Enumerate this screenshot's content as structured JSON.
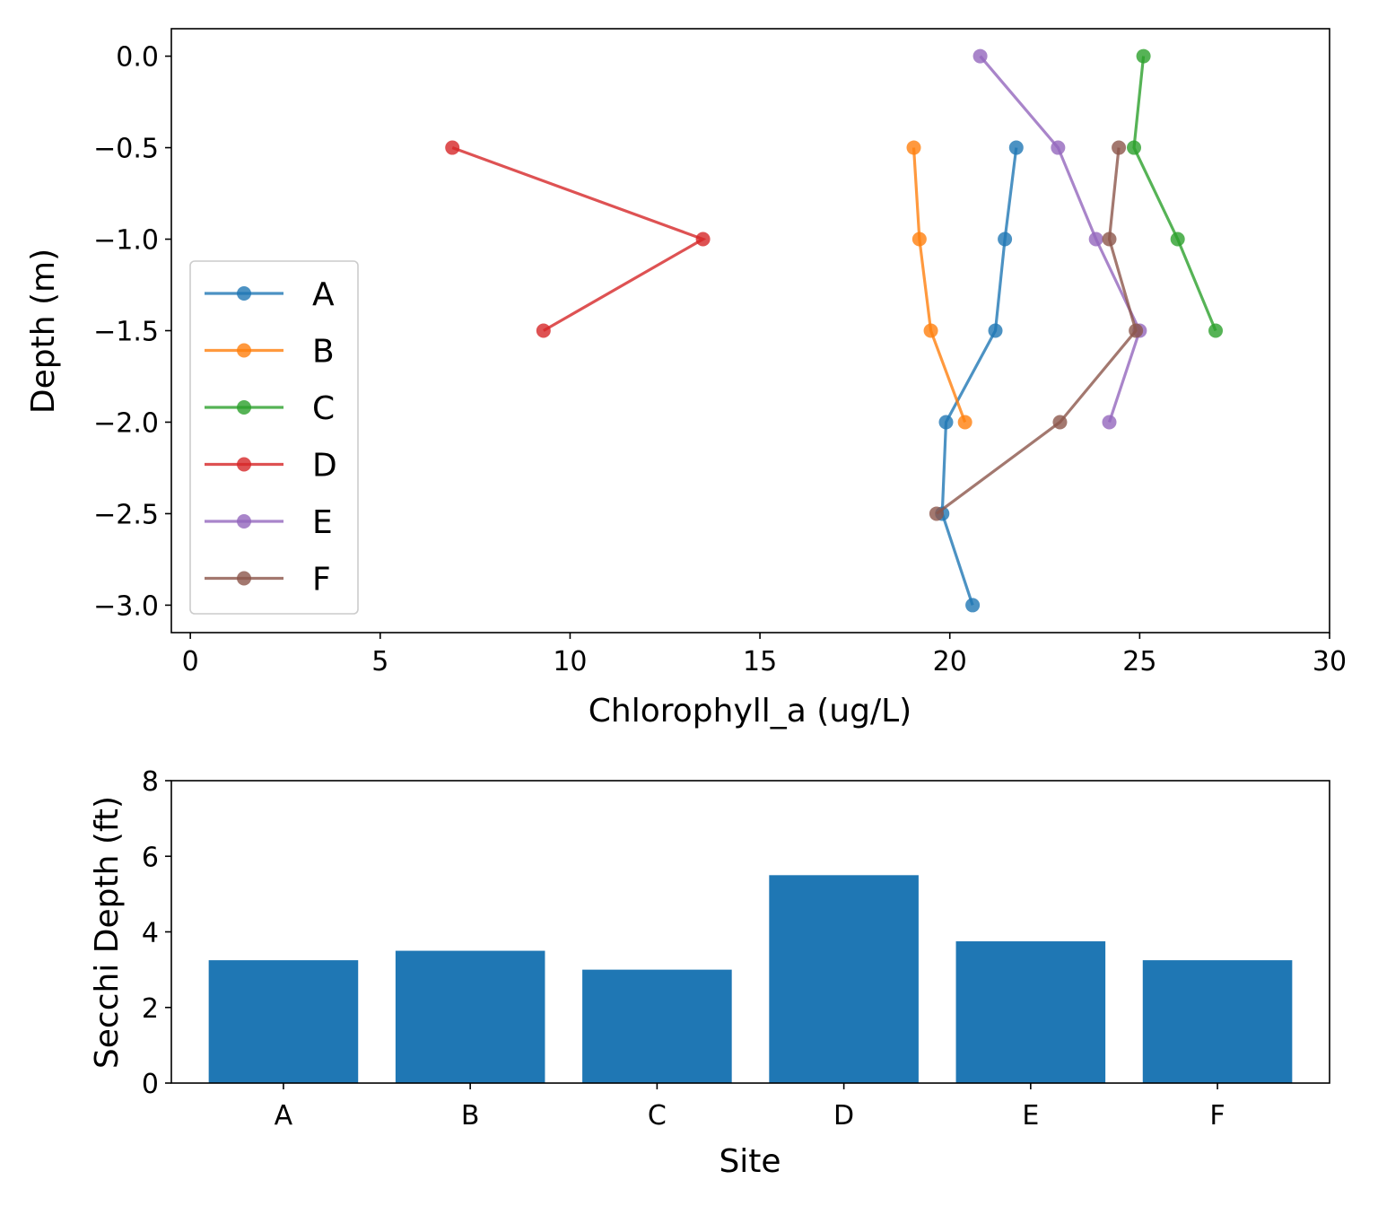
{
  "chart_data": [
    {
      "type": "line",
      "xlabel": "Chlorophyll_a  (ug/L)",
      "ylabel": "Depth (m)",
      "xlim": [
        -0.5,
        30
      ],
      "ylim": [
        -3.15,
        0.15
      ],
      "x_ticks": [
        0,
        5,
        10,
        15,
        20,
        25,
        30
      ],
      "x_tick_labels": [
        "0",
        "5",
        "10",
        "15",
        "20",
        "25",
        "30"
      ],
      "y_ticks": [
        0.0,
        -0.5,
        -1.0,
        -1.5,
        -2.0,
        -2.5,
        -3.0
      ],
      "y_tick_labels": [
        "0.0",
        "−0.5",
        "−1.0",
        "−1.5",
        "−2.0",
        "−2.5",
        "−3.0"
      ],
      "grid": false,
      "legend_position": "center-left",
      "series": [
        {
          "name": "A",
          "color": "#1f77b4",
          "points": [
            [
              21.75,
              -0.5
            ],
            [
              21.45,
              -1.0
            ],
            [
              21.2,
              -1.5
            ],
            [
              19.9,
              -2.0
            ],
            [
              19.8,
              -2.5
            ],
            [
              20.6,
              -3.0
            ]
          ]
        },
        {
          "name": "B",
          "color": "#ff7f0e",
          "points": [
            [
              19.05,
              -0.5
            ],
            [
              19.2,
              -1.0
            ],
            [
              19.5,
              -1.5
            ],
            [
              20.4,
              -2.0
            ]
          ]
        },
        {
          "name": "C",
          "color": "#2ca02c",
          "points": [
            [
              25.1,
              0.0
            ],
            [
              24.85,
              -0.5
            ],
            [
              26.0,
              -1.0
            ],
            [
              27.0,
              -1.5
            ]
          ]
        },
        {
          "name": "D",
          "color": "#d62728",
          "points": [
            [
              6.9,
              -0.5
            ],
            [
              13.5,
              -1.0
            ],
            [
              9.3,
              -1.5
            ]
          ]
        },
        {
          "name": "E",
          "color": "#9467bd",
          "points": [
            [
              20.8,
              0.0
            ],
            [
              22.85,
              -0.5
            ],
            [
              23.85,
              -1.0
            ],
            [
              25.0,
              -1.5
            ],
            [
              24.2,
              -2.0
            ]
          ]
        },
        {
          "name": "F",
          "color": "#8c564b",
          "points": [
            [
              24.45,
              -0.5
            ],
            [
              24.2,
              -1.0
            ],
            [
              24.9,
              -1.5
            ],
            [
              22.9,
              -2.0
            ],
            [
              19.65,
              -2.5
            ]
          ]
        }
      ]
    },
    {
      "type": "bar",
      "xlabel": "Site",
      "ylabel": "Secchi Depth (ft)",
      "categories": [
        "A",
        "B",
        "C",
        "D",
        "E",
        "F"
      ],
      "values": [
        3.25,
        3.5,
        3.0,
        5.5,
        3.75,
        3.25
      ],
      "ylim": [
        0,
        8
      ],
      "y_ticks": [
        0,
        2,
        4,
        6,
        8
      ],
      "y_tick_labels": [
        "0",
        "2",
        "4",
        "6",
        "8"
      ],
      "grid": false,
      "color": "#1f77b4"
    }
  ]
}
